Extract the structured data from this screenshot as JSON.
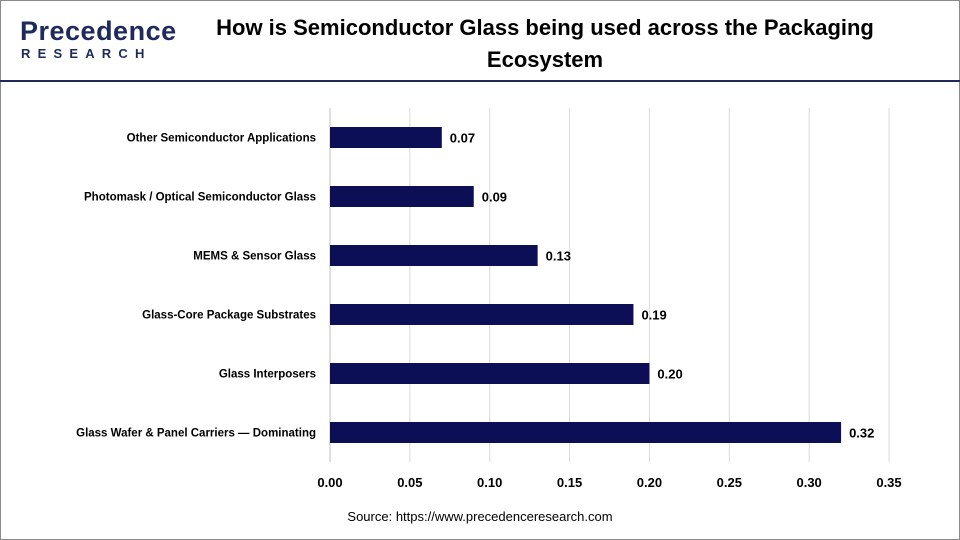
{
  "header": {
    "logo_main": "Precedence",
    "logo_sub": "RESEARCH",
    "title": "How is Semiconductor Glass being used across the Packaging Ecosystem"
  },
  "footer": {
    "source": "Source: https://www.precedenceresearch.com"
  },
  "colors": {
    "bar": "#0c0f55",
    "header_rule": "#1d2a5b",
    "grid": "#d9d9d9"
  },
  "chart_data": {
    "type": "bar",
    "orientation": "horizontal",
    "categories": [
      "Other Semiconductor Applications",
      "Photomask / Optical Semiconductor Glass",
      "MEMS & Sensor Glass",
      "Glass-Core Package Substrates",
      "Glass Interposers",
      "Glass Wafer & Panel Carriers — Dominating"
    ],
    "values": [
      0.07,
      0.09,
      0.13,
      0.19,
      0.2,
      0.32
    ],
    "value_labels": [
      "0.07",
      "0.09",
      "0.13",
      "0.19",
      "0.20",
      "0.32"
    ],
    "xlim": [
      0,
      0.35
    ],
    "xticks": [
      0,
      0.05,
      0.1,
      0.15,
      0.2,
      0.25,
      0.3,
      0.35
    ],
    "xtick_labels": [
      "0.00",
      "0.05",
      "0.10",
      "0.15",
      "0.20",
      "0.25",
      "0.30",
      "0.35"
    ],
    "grid": true,
    "legend": "none"
  }
}
